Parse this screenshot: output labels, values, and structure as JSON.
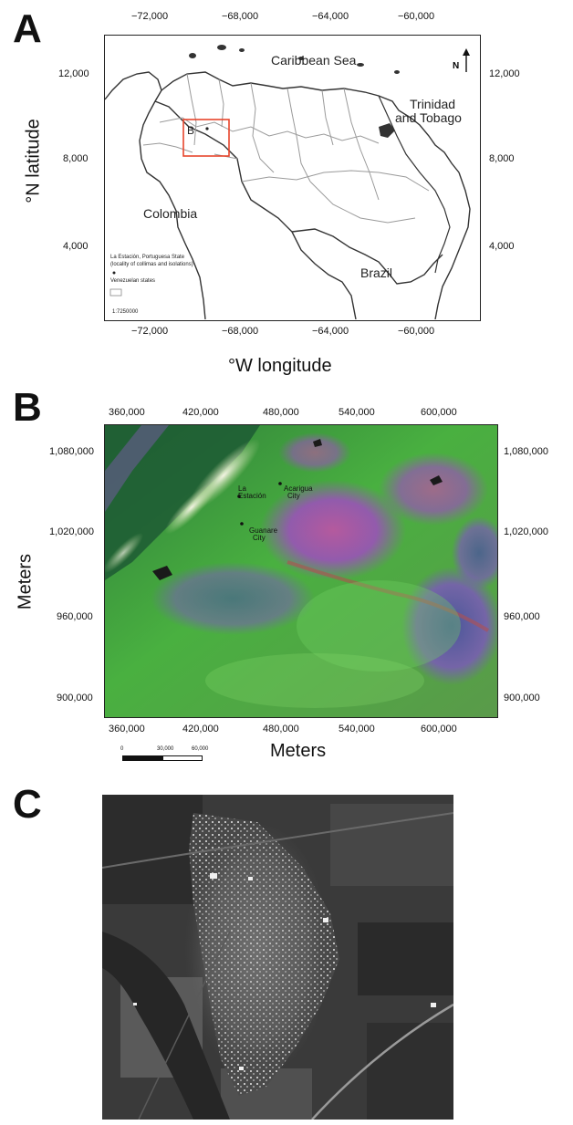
{
  "panels": {
    "a": {
      "letter": "A",
      "top_ticks": [
        "−72,000",
        "−68,000",
        "−64,000",
        "−60,000"
      ],
      "bottom_ticks": [
        "−72,000",
        "−68,000",
        "−64,000",
        "−60,000"
      ],
      "left_ticks": [
        "12,000",
        "8,000",
        "4,000"
      ],
      "right_ticks": [
        "12,000",
        "8,000",
        "4,000"
      ],
      "ylabel": "°N latitude",
      "xlabel": "°W longitude",
      "places": {
        "sea": "Caribbean Sea",
        "trinidad_1": "Trinidad",
        "trinidad_2": "and Tobago",
        "colombia": "Colombia",
        "brazil": "Brazil",
        "inset": "B",
        "north": "N"
      },
      "legend": {
        "line1": "La Estación, Portuguesa State",
        "line2": "(locality of collimas and isolations)",
        "line3": "Venezuelan states",
        "scale": "1:7250000"
      },
      "colors": {
        "inset_box": "#e8452c",
        "borders": "#9a9a9a",
        "coast": "#333333"
      }
    },
    "b": {
      "letter": "B",
      "top_ticks": [
        "360,000",
        "420,000",
        "480,000",
        "540,000",
        "600,000"
      ],
      "bottom_ticks": [
        "360,000",
        "420,000",
        "480,000",
        "540,000",
        "600,000"
      ],
      "left_ticks": [
        "1,080,000",
        "1,020,000",
        "960,000",
        "900,000"
      ],
      "right_ticks": [
        "1,080,000",
        "1,020,000",
        "960,000",
        "900,000"
      ],
      "ylabel": "Meters",
      "xlabel": "Meters",
      "places": {
        "la_estacion_1": "La",
        "la_estacion_2": "Estación",
        "acarigua_1": "Acarigua",
        "acarigua_2": "City",
        "guanare_1": "Guanare",
        "guanare_2": "City"
      },
      "scalebar": [
        "0",
        "30,000",
        "60,000"
      ],
      "colors": {
        "vegetation": "#3fa63c",
        "purple": "#8c4fb5",
        "magenta": "#c0508f"
      }
    },
    "c": {
      "letter": "C"
    }
  }
}
